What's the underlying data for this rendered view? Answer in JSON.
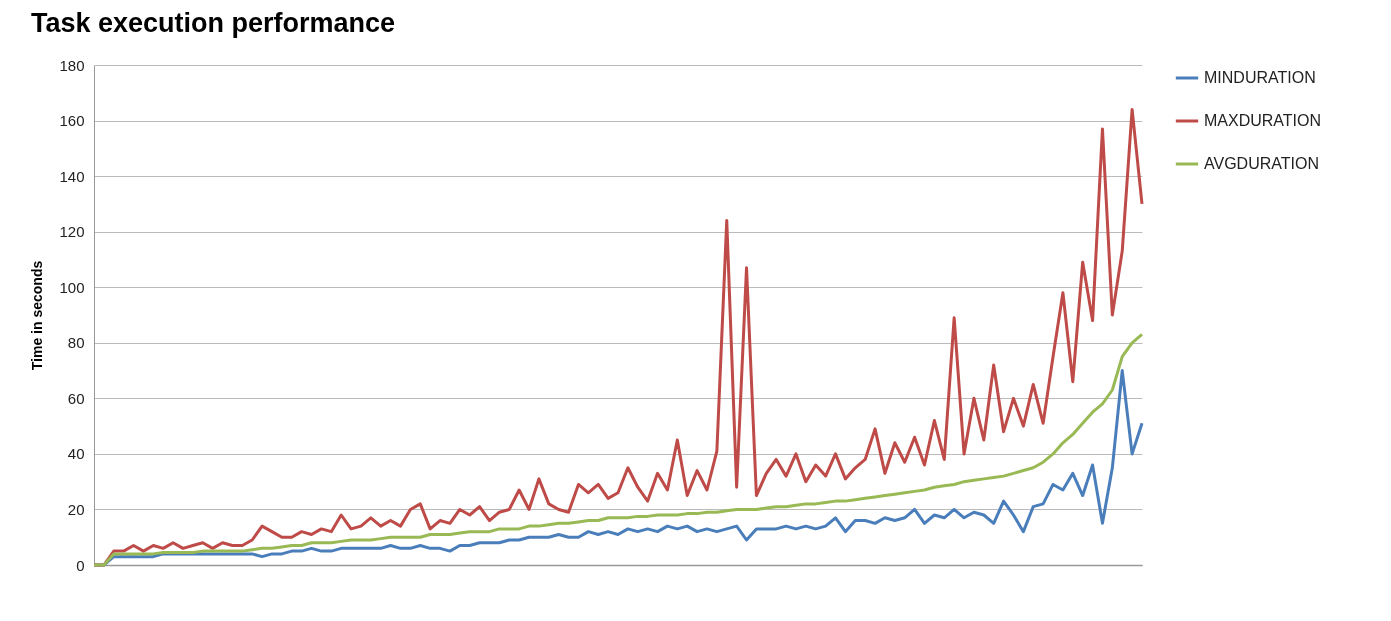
{
  "chart_data": {
    "type": "line",
    "title": "Task execution performance",
    "ylabel": "Time in seconds",
    "categories": [
      null,
      null,
      null,
      null,
      null,
      null,
      null,
      null,
      null,
      null,
      null,
      null,
      null,
      null,
      null,
      null,
      null,
      null,
      null,
      null,
      null,
      null,
      null,
      null,
      null,
      null,
      null,
      null,
      null,
      null,
      null,
      null,
      null,
      null,
      null,
      null,
      null,
      null,
      null,
      null,
      null,
      null,
      null,
      null,
      null,
      null,
      null,
      null,
      null,
      null,
      null,
      null,
      null,
      null,
      null,
      null,
      null,
      null,
      null,
      null,
      null,
      null,
      null,
      null,
      null,
      null,
      null,
      null,
      null,
      null,
      null,
      null,
      null,
      null,
      null,
      null,
      null,
      null,
      null,
      null,
      null,
      null,
      null,
      null,
      null,
      null,
      null,
      null,
      null,
      null,
      null,
      null,
      null,
      null,
      null,
      null,
      null,
      null,
      null,
      null,
      null,
      null,
      null,
      null,
      null,
      null,
      null
    ],
    "series": [
      {
        "name": "MINDURATION",
        "color": "#4a7ebb",
        "values": [
          0,
          0,
          3,
          3,
          3,
          3,
          3,
          4,
          4,
          4,
          4,
          4,
          4,
          4,
          4,
          4,
          4,
          3,
          4,
          4,
          5,
          5,
          6,
          5,
          5,
          6,
          6,
          6,
          6,
          6,
          7,
          6,
          6,
          7,
          6,
          6,
          5,
          7,
          7,
          8,
          8,
          8,
          9,
          9,
          10,
          10,
          10,
          11,
          10,
          10,
          12,
          11,
          12,
          11,
          13,
          12,
          13,
          12,
          14,
          13,
          14,
          12,
          13,
          12,
          13,
          14,
          9,
          13,
          13,
          13,
          14,
          13,
          14,
          13,
          14,
          17,
          12,
          16,
          16,
          15,
          17,
          16,
          17,
          20,
          15,
          18,
          17,
          20,
          17,
          19,
          18,
          15,
          23,
          18,
          12,
          21,
          22,
          29,
          27,
          33,
          25,
          36,
          15,
          35,
          70,
          40,
          51
        ]
      },
      {
        "name": "MAXDURATION",
        "color": "#be4b48",
        "values": [
          0,
          0,
          5,
          5,
          7,
          5,
          7,
          6,
          8,
          6,
          7,
          8,
          6,
          8,
          7,
          7,
          9,
          14,
          12,
          10,
          10,
          12,
          11,
          13,
          12,
          18,
          13,
          14,
          17,
          14,
          16,
          14,
          20,
          22,
          13,
          16,
          15,
          20,
          18,
          21,
          16,
          19,
          20,
          27,
          20,
          31,
          22,
          20,
          19,
          29,
          26,
          29,
          24,
          26,
          35,
          28,
          23,
          33,
          27,
          45,
          25,
          34,
          27,
          41,
          124,
          28,
          107,
          25,
          33,
          38,
          32,
          40,
          30,
          36,
          32,
          40,
          31,
          35,
          38,
          49,
          33,
          44,
          37,
          46,
          36,
          52,
          38,
          89,
          40,
          60,
          45,
          72,
          48,
          60,
          50,
          65,
          51,
          75,
          98,
          66,
          109,
          88,
          157,
          90,
          113,
          164,
          130
        ]
      },
      {
        "name": "AVGDURATION",
        "color": "#98b954",
        "values": [
          0,
          0,
          4,
          4,
          4,
          4,
          4,
          4.5,
          4.5,
          4.5,
          4.5,
          5,
          5,
          5,
          5,
          5,
          5.5,
          6,
          6,
          6.5,
          7,
          7,
          8,
          8,
          8,
          8.5,
          9,
          9,
          9,
          9.5,
          10,
          10,
          10,
          10,
          11,
          11,
          11,
          11.5,
          12,
          12,
          12,
          13,
          13,
          13,
          14,
          14,
          14.5,
          15,
          15,
          15.5,
          16,
          16,
          17,
          17,
          17,
          17.5,
          17.5,
          18,
          18,
          18,
          18.5,
          18.5,
          19,
          19,
          19.5,
          20,
          20,
          20,
          20.5,
          21,
          21,
          21.5,
          22,
          22,
          22.5,
          23,
          23,
          23.5,
          24,
          24.5,
          25,
          25.5,
          26,
          26.5,
          27,
          28,
          28.5,
          29,
          30,
          30.5,
          31,
          31.5,
          32,
          33,
          34,
          35,
          37,
          40,
          44,
          47,
          51,
          55,
          58,
          63,
          75,
          80,
          83
        ]
      }
    ],
    "ylim": [
      0,
      180
    ],
    "yticks": [
      0,
      20,
      40,
      60,
      80,
      100,
      120,
      140,
      160,
      180
    ],
    "grid": "y",
    "legend": "right",
    "tick_labels": "y",
    "marker": "none",
    "line_style": "solid"
  }
}
